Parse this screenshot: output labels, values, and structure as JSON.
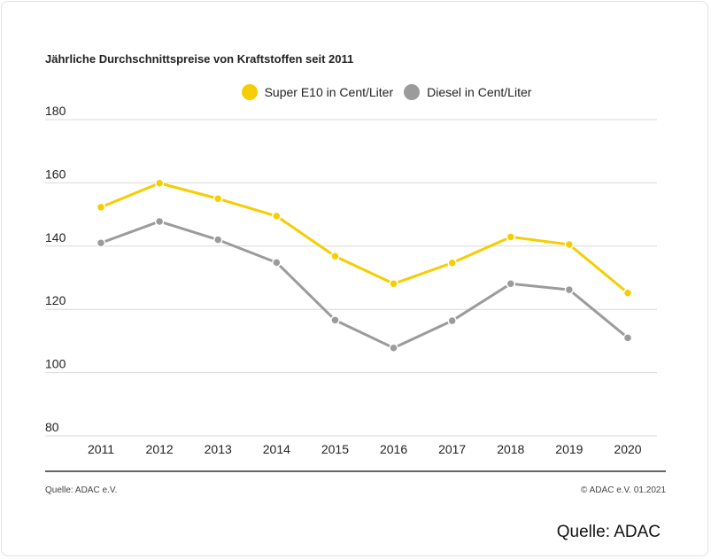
{
  "title": "Jährliche Durchschnittspreise von Kraftstoffen seit 2011",
  "legend": [
    {
      "label": "Super E10 in Cent/Liter",
      "color": "#f6cd00"
    },
    {
      "label": "Diesel in Cent/Liter",
      "color": "#9b9b9b"
    }
  ],
  "source_left": "Quelle: ADAC e.V.",
  "source_right": "© ADAC e.V. 01.2021",
  "caption": "Quelle: ADAC",
  "chart_data": {
    "type": "line",
    "title": "Jährliche Durchschnittspreise von Kraftstoffen seit 2011",
    "categories": [
      "2011",
      "2012",
      "2013",
      "2014",
      "2015",
      "2016",
      "2017",
      "2018",
      "2019",
      "2020"
    ],
    "yticks": [
      80,
      100,
      120,
      140,
      160,
      180
    ],
    "ylim": [
      80,
      180
    ],
    "grid": true,
    "legend_position": "top-center",
    "series": [
      {
        "name": "Super E10 in Cent/Liter",
        "color": "#f6cd00",
        "values": [
          152.3,
          159.9,
          155.0,
          149.5,
          136.8,
          128.1,
          134.7,
          142.9,
          140.5,
          125.2
        ]
      },
      {
        "name": "Diesel in Cent/Liter",
        "color": "#9b9b9b",
        "values": [
          141.0,
          147.8,
          142.0,
          134.8,
          116.6,
          107.8,
          116.4,
          128.1,
          126.2,
          111.0
        ]
      }
    ]
  }
}
